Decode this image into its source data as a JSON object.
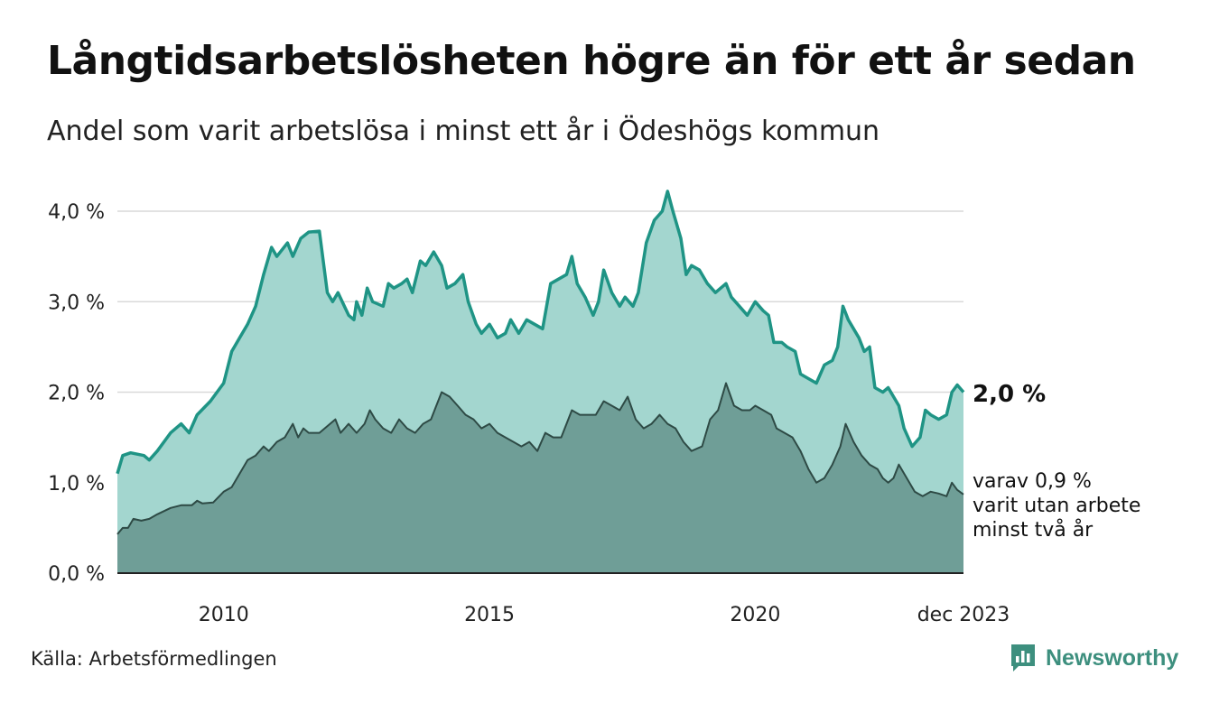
{
  "title": "Långtidsarbetslösheten högre än för ett år sedan",
  "subtitle": "Andel som varit arbetslösa i minst ett år i Ödeshögs kommun",
  "source": "Källa: Arbetsförmedlingen",
  "brand": {
    "name": "Newsworthy",
    "icon": "bar-chart-logo-icon"
  },
  "colors": {
    "outer_fill": "#a3d6cf",
    "outer_line": "#1f9485",
    "inner_fill": "#6f9e97",
    "inner_line": "#2e4a45",
    "grid": "#d9d9d9",
    "brand": "#3d8f7e"
  },
  "chart_data": {
    "type": "area",
    "x_start": 2008.0,
    "x_end": 2023.917,
    "ylim": [
      0,
      4.2
    ],
    "yticks": [
      "0,0 %",
      "1,0 %",
      "2,0 %",
      "3,0 %",
      "4,0 %"
    ],
    "ytick_values": [
      0,
      1,
      2,
      3,
      4
    ],
    "xticks": [
      "2010",
      "2015",
      "2020",
      "dec 2023"
    ],
    "xtick_values": [
      2010,
      2015,
      2020,
      2023.917
    ],
    "series": [
      {
        "name": "minst ett år",
        "end_label": "2,0 %",
        "points": [
          [
            2008.0,
            1.1
          ],
          [
            2008.1,
            1.3
          ],
          [
            2008.25,
            1.33
          ],
          [
            2008.5,
            1.3
          ],
          [
            2008.6,
            1.25
          ],
          [
            2008.75,
            1.35
          ],
          [
            2009.0,
            1.55
          ],
          [
            2009.2,
            1.65
          ],
          [
            2009.35,
            1.55
          ],
          [
            2009.5,
            1.75
          ],
          [
            2009.75,
            1.9
          ],
          [
            2010.0,
            2.1
          ],
          [
            2010.15,
            2.45
          ],
          [
            2010.3,
            2.6
          ],
          [
            2010.45,
            2.75
          ],
          [
            2010.6,
            2.95
          ],
          [
            2010.75,
            3.3
          ],
          [
            2010.9,
            3.6
          ],
          [
            2011.0,
            3.5
          ],
          [
            2011.2,
            3.65
          ],
          [
            2011.3,
            3.5
          ],
          [
            2011.45,
            3.7
          ],
          [
            2011.6,
            3.77
          ],
          [
            2011.8,
            3.78
          ],
          [
            2011.95,
            3.1
          ],
          [
            2012.05,
            3.0
          ],
          [
            2012.15,
            3.1
          ],
          [
            2012.35,
            2.85
          ],
          [
            2012.45,
            2.8
          ],
          [
            2012.5,
            3.0
          ],
          [
            2012.6,
            2.85
          ],
          [
            2012.7,
            3.15
          ],
          [
            2012.8,
            3.0
          ],
          [
            2013.0,
            2.95
          ],
          [
            2013.1,
            3.2
          ],
          [
            2013.2,
            3.15
          ],
          [
            2013.35,
            3.2
          ],
          [
            2013.45,
            3.25
          ],
          [
            2013.55,
            3.1
          ],
          [
            2013.7,
            3.45
          ],
          [
            2013.8,
            3.4
          ],
          [
            2013.95,
            3.55
          ],
          [
            2014.1,
            3.4
          ],
          [
            2014.2,
            3.15
          ],
          [
            2014.35,
            3.2
          ],
          [
            2014.5,
            3.3
          ],
          [
            2014.6,
            3.0
          ],
          [
            2014.75,
            2.75
          ],
          [
            2014.85,
            2.65
          ],
          [
            2015.0,
            2.75
          ],
          [
            2015.15,
            2.6
          ],
          [
            2015.3,
            2.65
          ],
          [
            2015.4,
            2.8
          ],
          [
            2015.55,
            2.65
          ],
          [
            2015.7,
            2.8
          ],
          [
            2015.85,
            2.75
          ],
          [
            2016.0,
            2.7
          ],
          [
            2016.15,
            3.2
          ],
          [
            2016.3,
            3.25
          ],
          [
            2016.45,
            3.3
          ],
          [
            2016.55,
            3.5
          ],
          [
            2016.65,
            3.2
          ],
          [
            2016.8,
            3.05
          ],
          [
            2016.95,
            2.85
          ],
          [
            2017.05,
            3.0
          ],
          [
            2017.15,
            3.35
          ],
          [
            2017.3,
            3.1
          ],
          [
            2017.45,
            2.95
          ],
          [
            2017.55,
            3.05
          ],
          [
            2017.7,
            2.95
          ],
          [
            2017.8,
            3.1
          ],
          [
            2017.95,
            3.65
          ],
          [
            2018.1,
            3.9
          ],
          [
            2018.25,
            4.0
          ],
          [
            2018.35,
            4.22
          ],
          [
            2018.45,
            4.0
          ],
          [
            2018.6,
            3.7
          ],
          [
            2018.7,
            3.3
          ],
          [
            2018.8,
            3.4
          ],
          [
            2018.95,
            3.35
          ],
          [
            2019.1,
            3.2
          ],
          [
            2019.25,
            3.1
          ],
          [
            2019.45,
            3.2
          ],
          [
            2019.55,
            3.05
          ],
          [
            2019.7,
            2.95
          ],
          [
            2019.85,
            2.85
          ],
          [
            2020.0,
            3.0
          ],
          [
            2020.15,
            2.9
          ],
          [
            2020.25,
            2.85
          ],
          [
            2020.35,
            2.55
          ],
          [
            2020.5,
            2.55
          ],
          [
            2020.6,
            2.5
          ],
          [
            2020.75,
            2.45
          ],
          [
            2020.85,
            2.2
          ],
          [
            2021.0,
            2.15
          ],
          [
            2021.15,
            2.1
          ],
          [
            2021.3,
            2.3
          ],
          [
            2021.45,
            2.35
          ],
          [
            2021.55,
            2.5
          ],
          [
            2021.65,
            2.95
          ],
          [
            2021.75,
            2.8
          ],
          [
            2021.85,
            2.7
          ],
          [
            2021.95,
            2.6
          ],
          [
            2022.05,
            2.45
          ],
          [
            2022.15,
            2.5
          ],
          [
            2022.25,
            2.05
          ],
          [
            2022.4,
            2.0
          ],
          [
            2022.5,
            2.05
          ],
          [
            2022.6,
            1.95
          ],
          [
            2022.7,
            1.85
          ],
          [
            2022.8,
            1.6
          ],
          [
            2022.95,
            1.4
          ],
          [
            2023.1,
            1.5
          ],
          [
            2023.2,
            1.8
          ],
          [
            2023.3,
            1.75
          ],
          [
            2023.45,
            1.7
          ],
          [
            2023.6,
            1.75
          ],
          [
            2023.7,
            2.0
          ],
          [
            2023.8,
            2.08
          ],
          [
            2023.917,
            2.0
          ]
        ]
      },
      {
        "name": "minst två år",
        "end_label_lines": [
          "varav 0,9 %",
          "varit utan arbete",
          "minst två år"
        ],
        "points": [
          [
            2008.0,
            0.43
          ],
          [
            2008.1,
            0.5
          ],
          [
            2008.2,
            0.5
          ],
          [
            2008.3,
            0.6
          ],
          [
            2008.45,
            0.58
          ],
          [
            2008.6,
            0.6
          ],
          [
            2008.75,
            0.65
          ],
          [
            2009.0,
            0.72
          ],
          [
            2009.2,
            0.75
          ],
          [
            2009.4,
            0.75
          ],
          [
            2009.5,
            0.8
          ],
          [
            2009.6,
            0.77
          ],
          [
            2009.8,
            0.78
          ],
          [
            2010.0,
            0.9
          ],
          [
            2010.15,
            0.95
          ],
          [
            2010.3,
            1.1
          ],
          [
            2010.45,
            1.25
          ],
          [
            2010.6,
            1.3
          ],
          [
            2010.75,
            1.4
          ],
          [
            2010.85,
            1.35
          ],
          [
            2011.0,
            1.45
          ],
          [
            2011.15,
            1.5
          ],
          [
            2011.3,
            1.65
          ],
          [
            2011.4,
            1.5
          ],
          [
            2011.5,
            1.6
          ],
          [
            2011.6,
            1.55
          ],
          [
            2011.8,
            1.55
          ],
          [
            2012.0,
            1.65
          ],
          [
            2012.1,
            1.7
          ],
          [
            2012.2,
            1.55
          ],
          [
            2012.35,
            1.65
          ],
          [
            2012.5,
            1.55
          ],
          [
            2012.65,
            1.65
          ],
          [
            2012.75,
            1.8
          ],
          [
            2012.85,
            1.7
          ],
          [
            2013.0,
            1.6
          ],
          [
            2013.15,
            1.55
          ],
          [
            2013.3,
            1.7
          ],
          [
            2013.45,
            1.6
          ],
          [
            2013.6,
            1.55
          ],
          [
            2013.75,
            1.65
          ],
          [
            2013.9,
            1.7
          ],
          [
            2014.0,
            1.85
          ],
          [
            2014.1,
            2.0
          ],
          [
            2014.25,
            1.95
          ],
          [
            2014.4,
            1.85
          ],
          [
            2014.55,
            1.75
          ],
          [
            2014.7,
            1.7
          ],
          [
            2014.85,
            1.6
          ],
          [
            2015.0,
            1.65
          ],
          [
            2015.15,
            1.55
          ],
          [
            2015.3,
            1.5
          ],
          [
            2015.45,
            1.45
          ],
          [
            2015.6,
            1.4
          ],
          [
            2015.75,
            1.45
          ],
          [
            2015.9,
            1.35
          ],
          [
            2016.05,
            1.55
          ],
          [
            2016.2,
            1.5
          ],
          [
            2016.35,
            1.5
          ],
          [
            2016.45,
            1.65
          ],
          [
            2016.55,
            1.8
          ],
          [
            2016.7,
            1.75
          ],
          [
            2016.85,
            1.75
          ],
          [
            2017.0,
            1.75
          ],
          [
            2017.15,
            1.9
          ],
          [
            2017.3,
            1.85
          ],
          [
            2017.45,
            1.8
          ],
          [
            2017.6,
            1.95
          ],
          [
            2017.75,
            1.7
          ],
          [
            2017.9,
            1.6
          ],
          [
            2018.05,
            1.65
          ],
          [
            2018.2,
            1.75
          ],
          [
            2018.35,
            1.65
          ],
          [
            2018.5,
            1.6
          ],
          [
            2018.65,
            1.45
          ],
          [
            2018.8,
            1.35
          ],
          [
            2019.0,
            1.4
          ],
          [
            2019.15,
            1.7
          ],
          [
            2019.3,
            1.8
          ],
          [
            2019.45,
            2.1
          ],
          [
            2019.6,
            1.85
          ],
          [
            2019.75,
            1.8
          ],
          [
            2019.9,
            1.8
          ],
          [
            2020.0,
            1.85
          ],
          [
            2020.15,
            1.8
          ],
          [
            2020.3,
            1.75
          ],
          [
            2020.4,
            1.6
          ],
          [
            2020.55,
            1.55
          ],
          [
            2020.7,
            1.5
          ],
          [
            2020.85,
            1.35
          ],
          [
            2021.0,
            1.15
          ],
          [
            2021.15,
            1.0
          ],
          [
            2021.3,
            1.05
          ],
          [
            2021.45,
            1.2
          ],
          [
            2021.6,
            1.4
          ],
          [
            2021.7,
            1.65
          ],
          [
            2021.85,
            1.45
          ],
          [
            2022.0,
            1.3
          ],
          [
            2022.15,
            1.2
          ],
          [
            2022.3,
            1.15
          ],
          [
            2022.4,
            1.05
          ],
          [
            2022.5,
            1.0
          ],
          [
            2022.6,
            1.05
          ],
          [
            2022.7,
            1.2
          ],
          [
            2022.85,
            1.05
          ],
          [
            2023.0,
            0.9
          ],
          [
            2023.15,
            0.85
          ],
          [
            2023.3,
            0.9
          ],
          [
            2023.45,
            0.88
          ],
          [
            2023.6,
            0.85
          ],
          [
            2023.7,
            1.0
          ],
          [
            2023.8,
            0.92
          ],
          [
            2023.917,
            0.87
          ]
        ]
      }
    ]
  }
}
